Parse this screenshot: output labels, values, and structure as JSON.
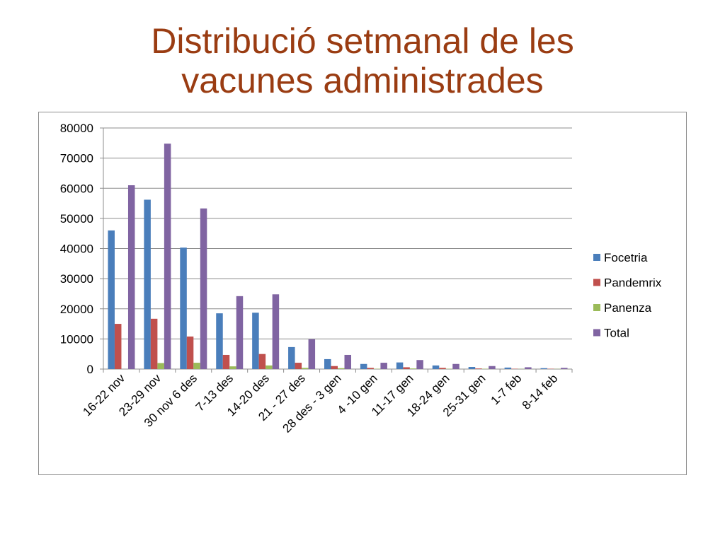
{
  "slide": {
    "title_line1": "Distribució setmanal de les",
    "title_line2": "vacunes administrades"
  },
  "chart_data": {
    "type": "bar",
    "title": "",
    "xlabel": "",
    "ylabel": "",
    "ylim": [
      0,
      80000
    ],
    "yticks": [
      0,
      10000,
      20000,
      30000,
      40000,
      50000,
      60000,
      70000,
      80000
    ],
    "grid": true,
    "legend_position": "right",
    "categories": [
      "16-22 nov",
      "23-29 nov",
      "30 nov 6 des",
      "7-13 des",
      "14-20 des",
      "21 - 27 des",
      "28 des - 3 gen",
      "4 -10 gen",
      "11-17 gen",
      "18-24 gen",
      "25-31 gen",
      "1-7  feb",
      "8-14 feb"
    ],
    "series": [
      {
        "name": "Focetria",
        "color": "#4a7ebb",
        "values": [
          46000,
          56200,
          40300,
          18500,
          18700,
          7300,
          3300,
          1700,
          2200,
          1200,
          700,
          500,
          300
        ]
      },
      {
        "name": "Pandemrix",
        "color": "#c0504d",
        "values": [
          15000,
          16700,
          10800,
          4700,
          5000,
          2100,
          1000,
          400,
          600,
          400,
          200,
          100,
          100
        ]
      },
      {
        "name": "Panenza",
        "color": "#9bbb59",
        "values": [
          0,
          2000,
          2100,
          900,
          1200,
          400,
          300,
          100,
          200,
          100,
          100,
          50,
          50
        ]
      },
      {
        "name": "Total",
        "color": "#8064a2",
        "values": [
          61000,
          74800,
          53300,
          24200,
          24800,
          9900,
          4700,
          2100,
          3000,
          1700,
          1000,
          600,
          400
        ]
      }
    ]
  }
}
